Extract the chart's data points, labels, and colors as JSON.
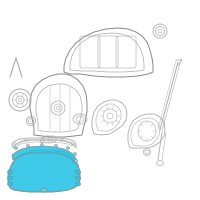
{
  "background_color": "#ffffff",
  "fig_size": [
    2.0,
    2.0
  ],
  "dpi": 100,
  "highlight_color": "#29c5e6",
  "highlight_alpha": 0.9,
  "line_color": "#aaaaaa",
  "line_width": 0.5,
  "outline_color": "#888888"
}
